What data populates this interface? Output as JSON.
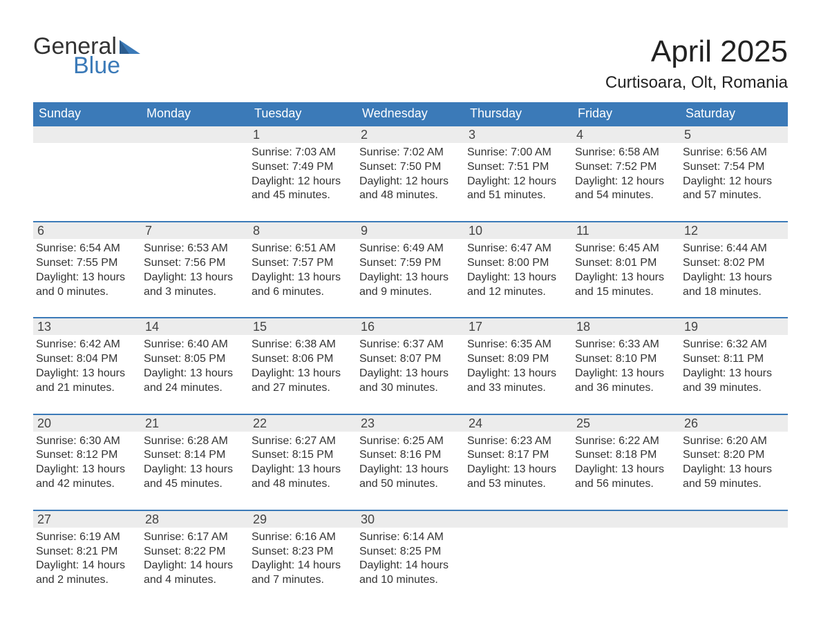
{
  "logo": {
    "word1": "General",
    "word2": "Blue",
    "tri_color": "#3b7ab8"
  },
  "title": "April 2025",
  "location": "Curtisoara, Olt, Romania",
  "colors": {
    "header_bg": "#3b7ab8",
    "header_text": "#ffffff",
    "daynum_bg": "#ececec",
    "week_divider": "#3b7ab8",
    "body_text": "#333333",
    "background": "#ffffff"
  },
  "typography": {
    "month_title_fontsize": 44,
    "location_fontsize": 24,
    "weekday_fontsize": 18,
    "daynum_fontsize": 18,
    "cell_fontsize": 16
  },
  "weekdays": [
    "Sunday",
    "Monday",
    "Tuesday",
    "Wednesday",
    "Thursday",
    "Friday",
    "Saturday"
  ],
  "labels": {
    "sunrise": "Sunrise",
    "sunset": "Sunset",
    "daylight": "Daylight"
  },
  "weeks": [
    [
      {
        "day": ""
      },
      {
        "day": ""
      },
      {
        "day": "1",
        "sunrise": "7:03 AM",
        "sunset": "7:49 PM",
        "daylight": "12 hours and 45 minutes."
      },
      {
        "day": "2",
        "sunrise": "7:02 AM",
        "sunset": "7:50 PM",
        "daylight": "12 hours and 48 minutes."
      },
      {
        "day": "3",
        "sunrise": "7:00 AM",
        "sunset": "7:51 PM",
        "daylight": "12 hours and 51 minutes."
      },
      {
        "day": "4",
        "sunrise": "6:58 AM",
        "sunset": "7:52 PM",
        "daylight": "12 hours and 54 minutes."
      },
      {
        "day": "5",
        "sunrise": "6:56 AM",
        "sunset": "7:54 PM",
        "daylight": "12 hours and 57 minutes."
      }
    ],
    [
      {
        "day": "6",
        "sunrise": "6:54 AM",
        "sunset": "7:55 PM",
        "daylight": "13 hours and 0 minutes."
      },
      {
        "day": "7",
        "sunrise": "6:53 AM",
        "sunset": "7:56 PM",
        "daylight": "13 hours and 3 minutes."
      },
      {
        "day": "8",
        "sunrise": "6:51 AM",
        "sunset": "7:57 PM",
        "daylight": "13 hours and 6 minutes."
      },
      {
        "day": "9",
        "sunrise": "6:49 AM",
        "sunset": "7:59 PM",
        "daylight": "13 hours and 9 minutes."
      },
      {
        "day": "10",
        "sunrise": "6:47 AM",
        "sunset": "8:00 PM",
        "daylight": "13 hours and 12 minutes."
      },
      {
        "day": "11",
        "sunrise": "6:45 AM",
        "sunset": "8:01 PM",
        "daylight": "13 hours and 15 minutes."
      },
      {
        "day": "12",
        "sunrise": "6:44 AM",
        "sunset": "8:02 PM",
        "daylight": "13 hours and 18 minutes."
      }
    ],
    [
      {
        "day": "13",
        "sunrise": "6:42 AM",
        "sunset": "8:04 PM",
        "daylight": "13 hours and 21 minutes."
      },
      {
        "day": "14",
        "sunrise": "6:40 AM",
        "sunset": "8:05 PM",
        "daylight": "13 hours and 24 minutes."
      },
      {
        "day": "15",
        "sunrise": "6:38 AM",
        "sunset": "8:06 PM",
        "daylight": "13 hours and 27 minutes."
      },
      {
        "day": "16",
        "sunrise": "6:37 AM",
        "sunset": "8:07 PM",
        "daylight": "13 hours and 30 minutes."
      },
      {
        "day": "17",
        "sunrise": "6:35 AM",
        "sunset": "8:09 PM",
        "daylight": "13 hours and 33 minutes."
      },
      {
        "day": "18",
        "sunrise": "6:33 AM",
        "sunset": "8:10 PM",
        "daylight": "13 hours and 36 minutes."
      },
      {
        "day": "19",
        "sunrise": "6:32 AM",
        "sunset": "8:11 PM",
        "daylight": "13 hours and 39 minutes."
      }
    ],
    [
      {
        "day": "20",
        "sunrise": "6:30 AM",
        "sunset": "8:12 PM",
        "daylight": "13 hours and 42 minutes."
      },
      {
        "day": "21",
        "sunrise": "6:28 AM",
        "sunset": "8:14 PM",
        "daylight": "13 hours and 45 minutes."
      },
      {
        "day": "22",
        "sunrise": "6:27 AM",
        "sunset": "8:15 PM",
        "daylight": "13 hours and 48 minutes."
      },
      {
        "day": "23",
        "sunrise": "6:25 AM",
        "sunset": "8:16 PM",
        "daylight": "13 hours and 50 minutes."
      },
      {
        "day": "24",
        "sunrise": "6:23 AM",
        "sunset": "8:17 PM",
        "daylight": "13 hours and 53 minutes."
      },
      {
        "day": "25",
        "sunrise": "6:22 AM",
        "sunset": "8:18 PM",
        "daylight": "13 hours and 56 minutes."
      },
      {
        "day": "26",
        "sunrise": "6:20 AM",
        "sunset": "8:20 PM",
        "daylight": "13 hours and 59 minutes."
      }
    ],
    [
      {
        "day": "27",
        "sunrise": "6:19 AM",
        "sunset": "8:21 PM",
        "daylight": "14 hours and 2 minutes."
      },
      {
        "day": "28",
        "sunrise": "6:17 AM",
        "sunset": "8:22 PM",
        "daylight": "14 hours and 4 minutes."
      },
      {
        "day": "29",
        "sunrise": "6:16 AM",
        "sunset": "8:23 PM",
        "daylight": "14 hours and 7 minutes."
      },
      {
        "day": "30",
        "sunrise": "6:14 AM",
        "sunset": "8:25 PM",
        "daylight": "14 hours and 10 minutes."
      },
      {
        "day": ""
      },
      {
        "day": ""
      },
      {
        "day": ""
      }
    ]
  ]
}
